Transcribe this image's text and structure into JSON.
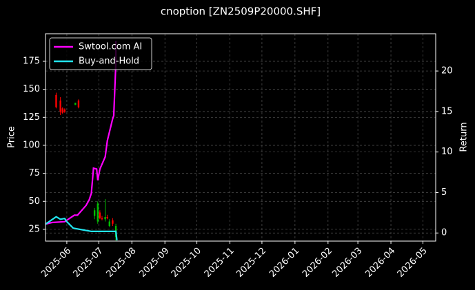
{
  "chart_data": {
    "type": "candlestick",
    "title": "cnoption [ZN2509P20000.SHF]",
    "ylabel": "Price",
    "y2label": "Return",
    "candles": {
      "x": [
        "2025-05-22",
        "2025-05-26",
        "2025-05-28",
        "2025-05-30",
        "2025-06-09",
        "2025-06-12",
        "2025-06-27",
        "2025-06-30",
        "2025-07-02",
        "2025-07-04",
        "2025-07-07",
        "2025-07-09",
        "2025-07-11",
        "2025-07-14",
        "2025-07-17"
      ],
      "open": [
        145,
        140,
        133,
        132,
        136,
        140,
        37,
        32,
        40,
        35,
        34,
        36,
        28,
        33,
        18
      ],
      "high": [
        147,
        143,
        134,
        133,
        138,
        141,
        44,
        50,
        42,
        37,
        52,
        38,
        34,
        35,
        30
      ],
      "low": [
        133,
        127,
        128,
        129,
        136,
        133,
        34,
        30,
        34,
        33,
        32,
        34,
        27,
        28,
        15
      ],
      "close": [
        134,
        130,
        129,
        130,
        138,
        134,
        42,
        48,
        35,
        34,
        36,
        35,
        32,
        30,
        28
      ],
      "up_color": "#00c000",
      "down_color": "#ff0000"
    },
    "series": [
      {
        "name": "Swtool.com AI",
        "color": "#ff00ff",
        "axis": "y2",
        "x": [
          "2025-05-12",
          "2025-05-18",
          "2025-05-30",
          "2025-06-08",
          "2025-06-11",
          "2025-06-19",
          "2025-06-22",
          "2025-06-24",
          "2025-06-26",
          "2025-06-29",
          "2025-06-30",
          "2025-07-02",
          "2025-07-07",
          "2025-07-09",
          "2025-07-14",
          "2025-07-15",
          "2025-07-17",
          "2025-07-17"
        ],
        "values": [
          1.1,
          1.3,
          1.4,
          2.2,
          2.2,
          3.4,
          4.1,
          4.9,
          8.0,
          7.9,
          6.5,
          7.9,
          9.4,
          11.4,
          14.1,
          14.5,
          21.1,
          23.7
        ]
      },
      {
        "name": "Buy-and-Hold",
        "color": "#22e5f0",
        "axis": "y2",
        "x": [
          "2025-05-12",
          "2025-05-22",
          "2025-05-26",
          "2025-05-30",
          "2025-06-01",
          "2025-06-07",
          "2025-06-24",
          "2025-07-17",
          "2025-07-18"
        ],
        "values": [
          1.1,
          2.0,
          1.7,
          1.8,
          1.4,
          0.6,
          0.2,
          0.2,
          -0.9
        ]
      }
    ],
    "xlim": [
      "2025-05-12",
      "2026-05-13"
    ],
    "xticks": [
      {
        "value": "2025-06-01",
        "label": "2025-06"
      },
      {
        "value": "2025-07-01",
        "label": "2025-07"
      },
      {
        "value": "2025-08-01",
        "label": "2025-08"
      },
      {
        "value": "2025-09-01",
        "label": "2025-09"
      },
      {
        "value": "2025-10-01",
        "label": "2025-10"
      },
      {
        "value": "2025-11-01",
        "label": "2025-11"
      },
      {
        "value": "2025-12-01",
        "label": "2025-12"
      },
      {
        "value": "2026-01-01",
        "label": "2026-01"
      },
      {
        "value": "2026-02-01",
        "label": "2026-02"
      },
      {
        "value": "2026-03-01",
        "label": "2026-03"
      },
      {
        "value": "2026-04-01",
        "label": "2026-04"
      },
      {
        "value": "2026-05-01",
        "label": "2026-05"
      }
    ],
    "ylim": [
      14.5,
      199.6
    ],
    "yticks": [
      25,
      50,
      75,
      100,
      125,
      150,
      175
    ],
    "y2lim": [
      -1.0,
      24.6
    ],
    "y2ticks": [
      0,
      5,
      10,
      15,
      20
    ],
    "grid": true,
    "legend": "upper left"
  }
}
